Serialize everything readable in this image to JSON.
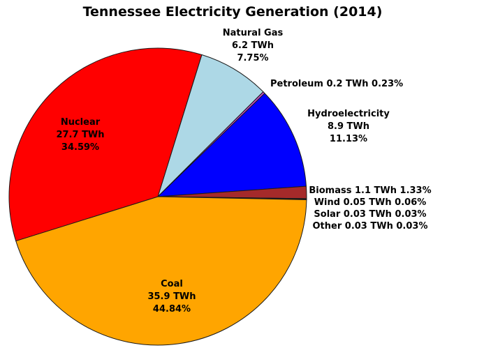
{
  "title": "Tennessee Electricity Generation (2014)",
  "chart_data": {
    "type": "pie",
    "title": "Tennessee Electricity Generation (2014)",
    "unit": "TWh",
    "start_angle_deg": 72.8,
    "direction": "clockwise",
    "legend_position": "none",
    "slices": [
      {
        "label": "Natural Gas",
        "value_twh": 6.2,
        "percent": 7.75,
        "color": "#ADD8E6"
      },
      {
        "label": "Petroleum",
        "value_twh": 0.2,
        "percent": 0.23,
        "color": "#C24FC2"
      },
      {
        "label": "Hydroelectricity",
        "value_twh": 8.9,
        "percent": 11.13,
        "color": "#0000FF"
      },
      {
        "label": "Biomass",
        "value_twh": 1.1,
        "percent": 1.33,
        "color": "#A52A2A"
      },
      {
        "label": "Wind",
        "value_twh": 0.05,
        "percent": 0.06,
        "color": "#87CEEB"
      },
      {
        "label": "Solar",
        "value_twh": 0.03,
        "percent": 0.03,
        "color": "#FFFF00"
      },
      {
        "label": "Other",
        "value_twh": 0.03,
        "percent": 0.03,
        "color": "#808080"
      },
      {
        "label": "Coal",
        "value_twh": 35.9,
        "percent": 44.84,
        "color": "#FFA500"
      },
      {
        "label": "Nuclear",
        "value_twh": 27.7,
        "percent": 34.59,
        "color": "#FF0000"
      }
    ],
    "outline_color": "#1a1a1a"
  },
  "labels": {
    "natural_gas": {
      "line1": "Natural Gas",
      "line2": "6.2 TWh",
      "line3": "7.75%"
    },
    "petroleum": {
      "line1": "Petroleum 0.2 TWh 0.23%"
    },
    "hydro": {
      "line1": "Hydroelectricity",
      "line2": "8.9 TWh",
      "line3": "11.13%"
    },
    "small_slices": {
      "line1": "Biomass 1.1 TWh 1.33%",
      "line2": "Wind 0.05 TWh 0.06%",
      "line3": "Solar 0.03 TWh 0.03%",
      "line4": "Other 0.03 TWh 0.03%"
    },
    "nuclear": {
      "line1": "Nuclear",
      "line2": "27.7 TWh",
      "line3": "34.59%"
    },
    "coal": {
      "line1": "Coal",
      "line2": "35.9 TWh",
      "line3": "44.84%"
    }
  }
}
